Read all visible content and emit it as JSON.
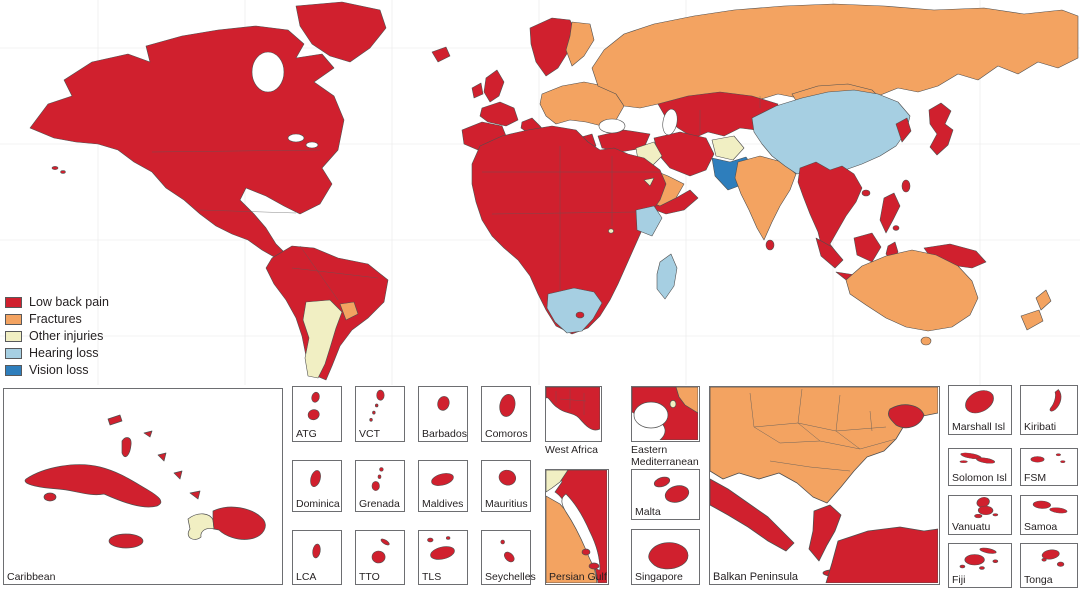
{
  "figure": {
    "description": "World map of leading cause category by country, with regional insets"
  },
  "colors": {
    "low_back_pain": "#d0202e",
    "fractures": "#f3a361",
    "other_injuries": "#f1efc3",
    "hearing_loss": "#a6cfe2",
    "vision_loss": "#2e7ebc",
    "coastline": "#4f4f4f",
    "box_border": "#6d6e71",
    "label_text": "#231f20",
    "ocean": "#ffffff"
  },
  "legend": {
    "items": [
      {
        "id": "low-back-pain",
        "label": "Low back pain",
        "color_key": "low_back_pain"
      },
      {
        "id": "fractures",
        "label": "Fractures",
        "color_key": "fractures"
      },
      {
        "id": "other-injuries",
        "label": "Other injuries",
        "color_key": "other_injuries"
      },
      {
        "id": "hearing-loss",
        "label": "Hearing loss",
        "color_key": "hearing_loss"
      },
      {
        "id": "vision-loss",
        "label": "Vision loss",
        "color_key": "vision_loss"
      }
    ]
  },
  "map_data": {
    "type": "choropleth",
    "category_by_region": {
      "North America": "Low back pain",
      "Greenland": "Low back pain",
      "Central America": "Low back pain",
      "South America (most)": "Low back pain",
      "Argentina": "Other injuries",
      "Uruguay": "Fractures",
      "Haiti": "Other injuries",
      "Caribbean (most)": "Low back pain",
      "Western Europe": "Low back pain",
      "Scandinavia (Norway/Sweden)": "Low back pain",
      "Finland": "Fractures",
      "Central and Eastern Europe": "Fractures",
      "Balkans": "Fractures",
      "Russia": "Fractures",
      "Moldova": "Low back pain",
      "Turkey": "Low back pain",
      "Iraq": "Other injuries",
      "Iran": "Low back pain",
      "Saudi Arabia": "Fractures",
      "Yemen and Oman": "Low back pain",
      "Central Asia / Kazakhstan": "Low back pain",
      "Afghanistan": "Other injuries",
      "Pakistan": "Vision loss",
      "India": "Fractures",
      "China": "Hearing loss",
      "Mongolia": "Fractures",
      "Southeast Asia": "Low back pain",
      "Korea": "Low back pain",
      "Japan": "Low back pain",
      "Indonesia / Philippines": "Low back pain",
      "Papua New Guinea": "Low back pain",
      "Africa (most)": "Low back pain",
      "Kenya": "Hearing loss",
      "South Africa": "Hearing loss",
      "Madagascar": "Hearing loss",
      "Australia": "Fractures",
      "New Zealand": "Fractures"
    }
  },
  "insets": {
    "caribbean": {
      "label": "Caribbean"
    },
    "islands_grid": [
      {
        "id": "atg",
        "label": "ATG"
      },
      {
        "id": "vct",
        "label": "VCT"
      },
      {
        "id": "barbados",
        "label": "Barbados"
      },
      {
        "id": "comoros",
        "label": "Comoros"
      },
      {
        "id": "dominica",
        "label": "Dominica"
      },
      {
        "id": "grenada",
        "label": "Grenada"
      },
      {
        "id": "maldives",
        "label": "Maldives"
      },
      {
        "id": "mauritius",
        "label": "Mauritius"
      },
      {
        "id": "lca",
        "label": "LCA"
      },
      {
        "id": "tto",
        "label": "TTO"
      },
      {
        "id": "tls",
        "label": "TLS"
      },
      {
        "id": "seychelles",
        "label": "Seychelles"
      }
    ],
    "west_africa": {
      "label": "West Africa"
    },
    "eastern_mediterranean": {
      "label": "Eastern Mediterranean"
    },
    "persian_gulf": {
      "label": "Persian Gulf"
    },
    "malta": {
      "label": "Malta"
    },
    "singapore": {
      "label": "Singapore"
    },
    "balkan": {
      "label": "Balkan Peninsula"
    },
    "pacific": [
      {
        "id": "marshall",
        "label": "Marshall Isl"
      },
      {
        "id": "kiribati",
        "label": "Kiribati"
      },
      {
        "id": "solomon",
        "label": "Solomon Isl"
      },
      {
        "id": "fsm",
        "label": "FSM"
      },
      {
        "id": "vanuatu",
        "label": "Vanuatu"
      },
      {
        "id": "samoa",
        "label": "Samoa"
      },
      {
        "id": "fiji",
        "label": "Fiji"
      },
      {
        "id": "tonga",
        "label": "Tonga"
      }
    ]
  }
}
